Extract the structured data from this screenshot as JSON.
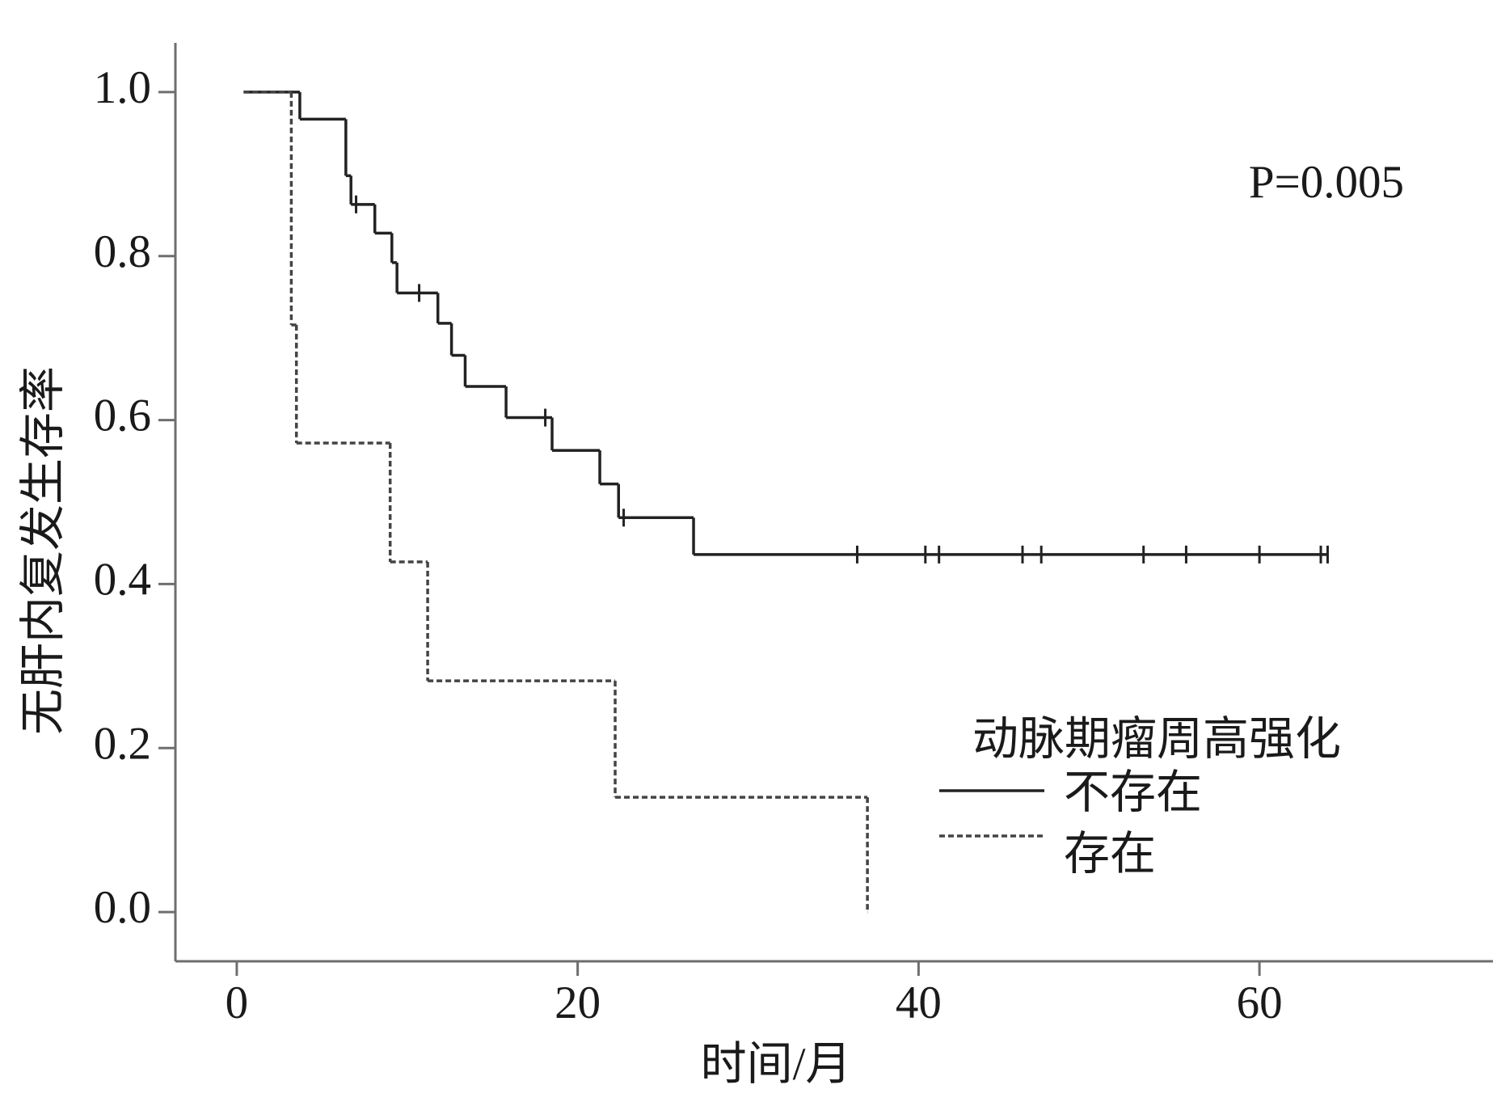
{
  "chart_data": {
    "type": "km",
    "xlabel": "时间/月",
    "ylabel": "无肝内复发生存率",
    "annotation": "P=0.005",
    "legend_title": "动脉期瘤周高强化",
    "xlim": [
      -3.6,
      73.7
    ],
    "ylim": [
      -0.06,
      1.06
    ],
    "xticks": [
      0,
      20,
      40,
      60
    ],
    "yticks": [
      {
        "value": 0,
        "label": "0.0"
      },
      {
        "value": 0.2,
        "label": "0.2"
      },
      {
        "value": 0.4,
        "label": "0.4"
      },
      {
        "value": 0.6,
        "label": "0.6"
      },
      {
        "value": 0.8,
        "label": "0.8"
      },
      {
        "value": 1,
        "label": "1.0"
      }
    ],
    "series": [
      {
        "name": "不存在",
        "color": "#222222",
        "dash": false,
        "x": [
          0.4,
          3.7,
          6.4,
          6.7,
          8.1,
          9.1,
          9.4,
          11.8,
          12.6,
          13.4,
          15.8,
          18.5,
          21.3,
          22.4,
          26.8
        ],
        "values": [
          1.0,
          0.967,
          0.898,
          0.863,
          0.828,
          0.792,
          0.755,
          0.718,
          0.679,
          0.641,
          0.603,
          0.563,
          0.522,
          0.481,
          0.436
        ],
        "censor_x": [
          7.0,
          10.7,
          18.1,
          22.7,
          36.4,
          40.4,
          41.2,
          46.1,
          47.2,
          53.2,
          55.7,
          60.0,
          63.6,
          64.0
        ]
      },
      {
        "name": "存在",
        "color": "#444444",
        "dash": true,
        "x": [
          0.4,
          3.2,
          3.5,
          9.0,
          11.2,
          22.2,
          37.0
        ],
        "values": [
          1.0,
          0.716,
          0.572,
          0.427,
          0.282,
          0.14,
          0
        ],
        "censor_x": []
      }
    ]
  }
}
